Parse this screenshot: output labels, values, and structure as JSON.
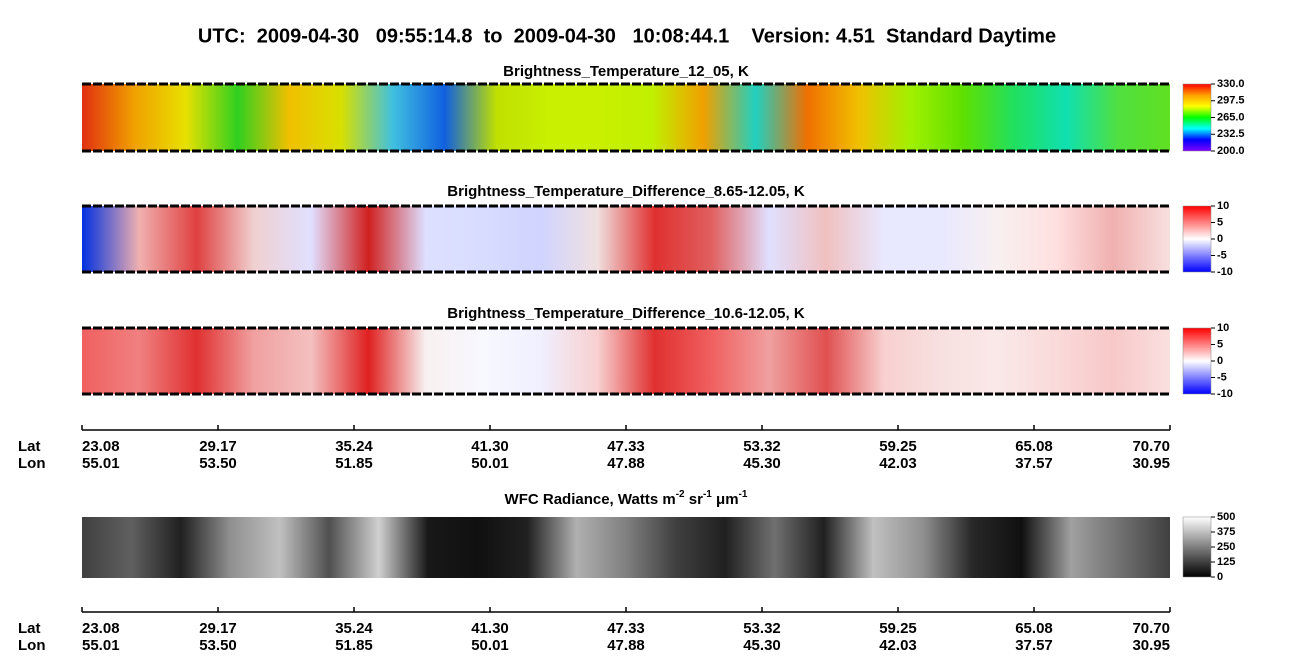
{
  "title": "UTC:  2009-04-30   09:55:14.8  to  2009-04-30   10:08:44.1    Version: 4.51  Standard Daytime",
  "panels": [
    {
      "title": "Brightness_Temperature_12_05, K",
      "colorbar_ticks": [
        {
          "value": 330,
          "label": "330.0"
        },
        {
          "value": 297.5,
          "label": "297.5"
        },
        {
          "value": 265,
          "label": "265.0"
        },
        {
          "value": 232.5,
          "label": "232.5"
        },
        {
          "value": 200,
          "label": "200.0"
        }
      ]
    },
    {
      "title": "Brightness_Temperature_Difference_8.65-12.05, K",
      "colorbar_ticks": [
        10,
        5,
        0,
        -5,
        -10
      ]
    },
    {
      "title": "Brightness_Temperature_Difference_10.6-12.05, K",
      "colorbar_ticks": [
        10,
        5,
        0,
        -5,
        -10
      ]
    }
  ],
  "radiance": {
    "title_parts": [
      "WFC Radiance, Watts m",
      "-2",
      " sr",
      "-1",
      " μm",
      "-1"
    ],
    "colorbar_ticks": [
      500,
      375,
      250,
      125,
      0
    ]
  },
  "axes": [
    {
      "lat_label": "Lat",
      "lon_label": "Lon",
      "lat": [
        "23.08",
        "29.17",
        "35.24",
        "41.30",
        "47.33",
        "53.32",
        "59.25",
        "65.08",
        "70.70"
      ],
      "lon": [
        "55.01",
        "53.50",
        "51.85",
        "50.01",
        "47.88",
        "45.30",
        "42.03",
        "37.57",
        "30.95"
      ]
    },
    {
      "lat_label": "Lat",
      "lon_label": "Lon",
      "lat": [
        "23.08",
        "29.17",
        "35.24",
        "41.30",
        "47.33",
        "53.32",
        "59.25",
        "65.08",
        "70.70"
      ],
      "lon": [
        "55.01",
        "53.50",
        "51.85",
        "50.01",
        "47.88",
        "45.30",
        "42.03",
        "37.57",
        "30.95"
      ]
    }
  ]
}
